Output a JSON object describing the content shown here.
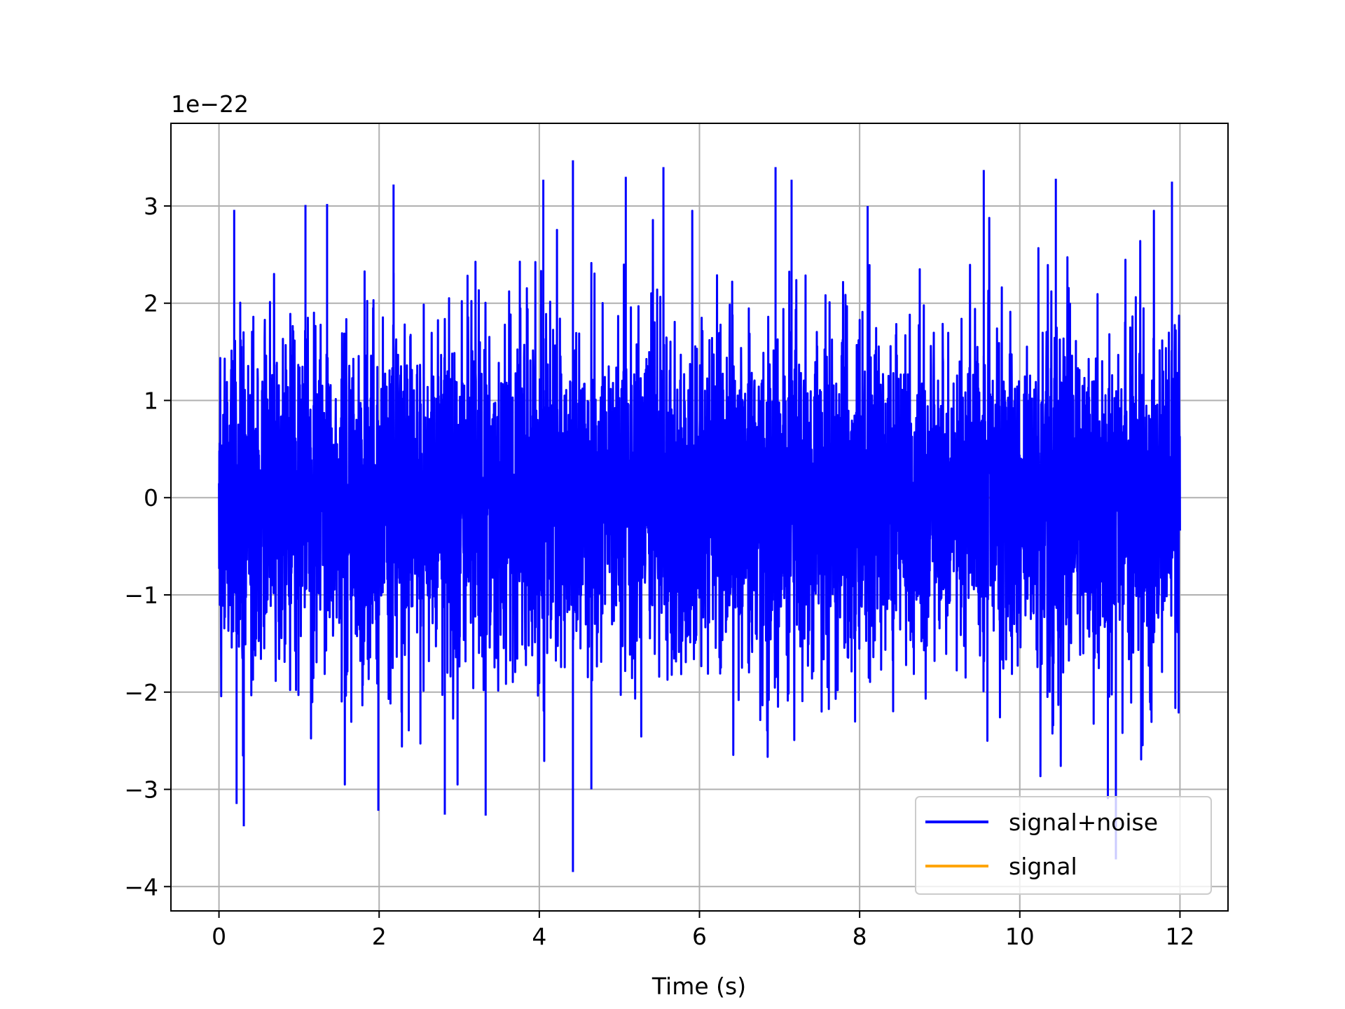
{
  "chart_data": {
    "type": "line",
    "title": "",
    "xlabel": "Time (s)",
    "ylabel": "",
    "y_offset_label": "1e−22",
    "xlim": [
      -0.6,
      12.6
    ],
    "ylim": [
      -4.25,
      3.85
    ],
    "x_ticks": [
      0,
      2,
      4,
      6,
      8,
      10,
      12
    ],
    "x_tick_labels": [
      "0",
      "2",
      "4",
      "6",
      "8",
      "10",
      "12"
    ],
    "y_ticks": [
      -4,
      -3,
      -2,
      -1,
      0,
      1,
      2,
      3
    ],
    "y_tick_labels": [
      "−4",
      "−3",
      "−2",
      "−1",
      "0",
      "1",
      "2",
      "3"
    ],
    "grid": true,
    "legend_position": "lower-right",
    "x_range": [
      0,
      12
    ],
    "series": [
      {
        "name": "signal+noise",
        "color": "#0000ff",
        "description_values": "dense noise-dominated strain time series, amplitude mostly within ±2, extremes about +3.45 and -3.85 (units of 1e-22)",
        "peaks": [
          {
            "x": 0.31,
            "y": -3.38
          },
          {
            "x": 0.22,
            "y": -3.15
          },
          {
            "x": 0.19,
            "y": 2.96
          },
          {
            "x": 1.08,
            "y": 3.01
          },
          {
            "x": 1.35,
            "y": 3.02
          },
          {
            "x": 1.99,
            "y": -3.22
          },
          {
            "x": 2.18,
            "y": 3.22
          },
          {
            "x": 2.82,
            "y": -3.26
          },
          {
            "x": 3.33,
            "y": -3.27
          },
          {
            "x": 4.05,
            "y": 3.27
          },
          {
            "x": 4.42,
            "y": 3.47
          },
          {
            "x": 4.42,
            "y": -3.85
          },
          {
            "x": 4.65,
            "y": -3.0
          },
          {
            "x": 5.08,
            "y": 3.3
          },
          {
            "x": 5.55,
            "y": 3.4
          },
          {
            "x": 6.95,
            "y": 3.4
          },
          {
            "x": 7.15,
            "y": 3.27
          },
          {
            "x": 8.1,
            "y": 3.0
          },
          {
            "x": 9.55,
            "y": 3.37
          },
          {
            "x": 10.45,
            "y": 3.28
          },
          {
            "x": 11.1,
            "y": -3.1
          },
          {
            "x": 11.2,
            "y": -3.72
          },
          {
            "x": 11.9,
            "y": 3.25
          }
        ],
        "typical_range": [
          -2.0,
          2.0
        ]
      },
      {
        "name": "signal",
        "color": "#ffa500",
        "description_values": "hidden behind signal+noise trace; not visible",
        "peaks": [],
        "typical_range": [
          0,
          0
        ]
      }
    ]
  }
}
